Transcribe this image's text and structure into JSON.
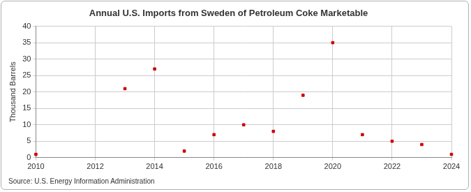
{
  "chart_data": {
    "type": "scatter",
    "title": "Annual U.S. Imports from Sweden of Petroleum Coke Marketable",
    "y_label": "Thousand Barrels",
    "source": "Source: U.S. Energy Information Administration",
    "x": [
      2010,
      2013,
      2014,
      2015,
      2016,
      2017,
      2018,
      2019,
      2020,
      2021,
      2022,
      2023,
      2024
    ],
    "values": [
      1,
      21,
      27,
      2,
      7,
      10,
      8,
      19,
      35,
      7,
      5,
      4,
      1
    ],
    "color": "#cc0000",
    "marker": "square",
    "xlim": [
      2010,
      2024
    ],
    "xticks": [
      2010,
      2012,
      2014,
      2016,
      2018,
      2020,
      2022,
      2024
    ],
    "ylim": [
      0,
      40
    ],
    "yticks": [
      0,
      5,
      10,
      15,
      20,
      25,
      30,
      35,
      40
    ],
    "grid": true
  }
}
